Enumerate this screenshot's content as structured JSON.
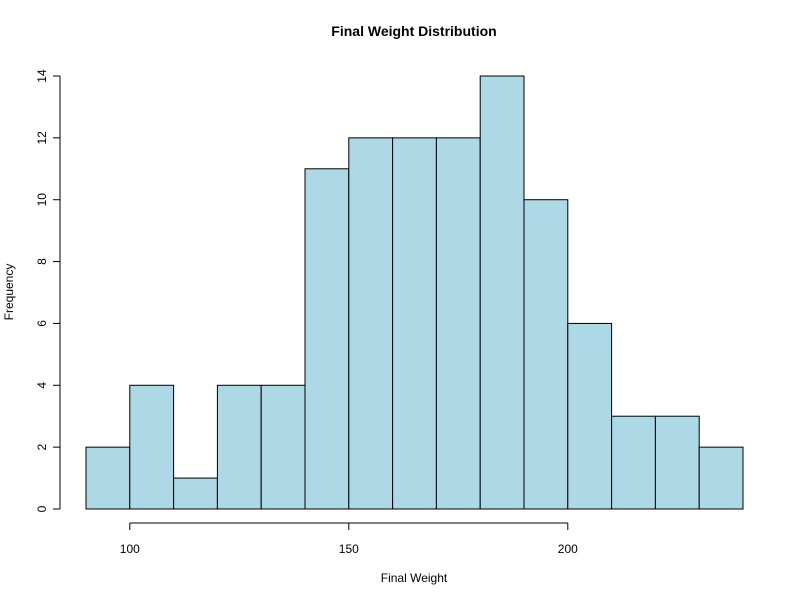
{
  "chart_data": {
    "type": "bar",
    "title": "Final Weight Distribution",
    "xlabel": "Final Weight",
    "ylabel": "Frequency",
    "bin_edges": [
      90,
      100,
      110,
      120,
      130,
      140,
      150,
      160,
      170,
      180,
      190,
      200,
      210,
      220,
      230,
      240
    ],
    "values": [
      2,
      4,
      1,
      4,
      4,
      11,
      12,
      12,
      12,
      14,
      10,
      6,
      3,
      3,
      2
    ],
    "x_ticks": [
      100,
      150,
      200
    ],
    "y_ticks": [
      0,
      2,
      4,
      6,
      8,
      10,
      12,
      14
    ],
    "xlim": [
      90,
      240
    ],
    "ylim": [
      0,
      14
    ],
    "bar_color": "#add8e6",
    "grid": false
  }
}
